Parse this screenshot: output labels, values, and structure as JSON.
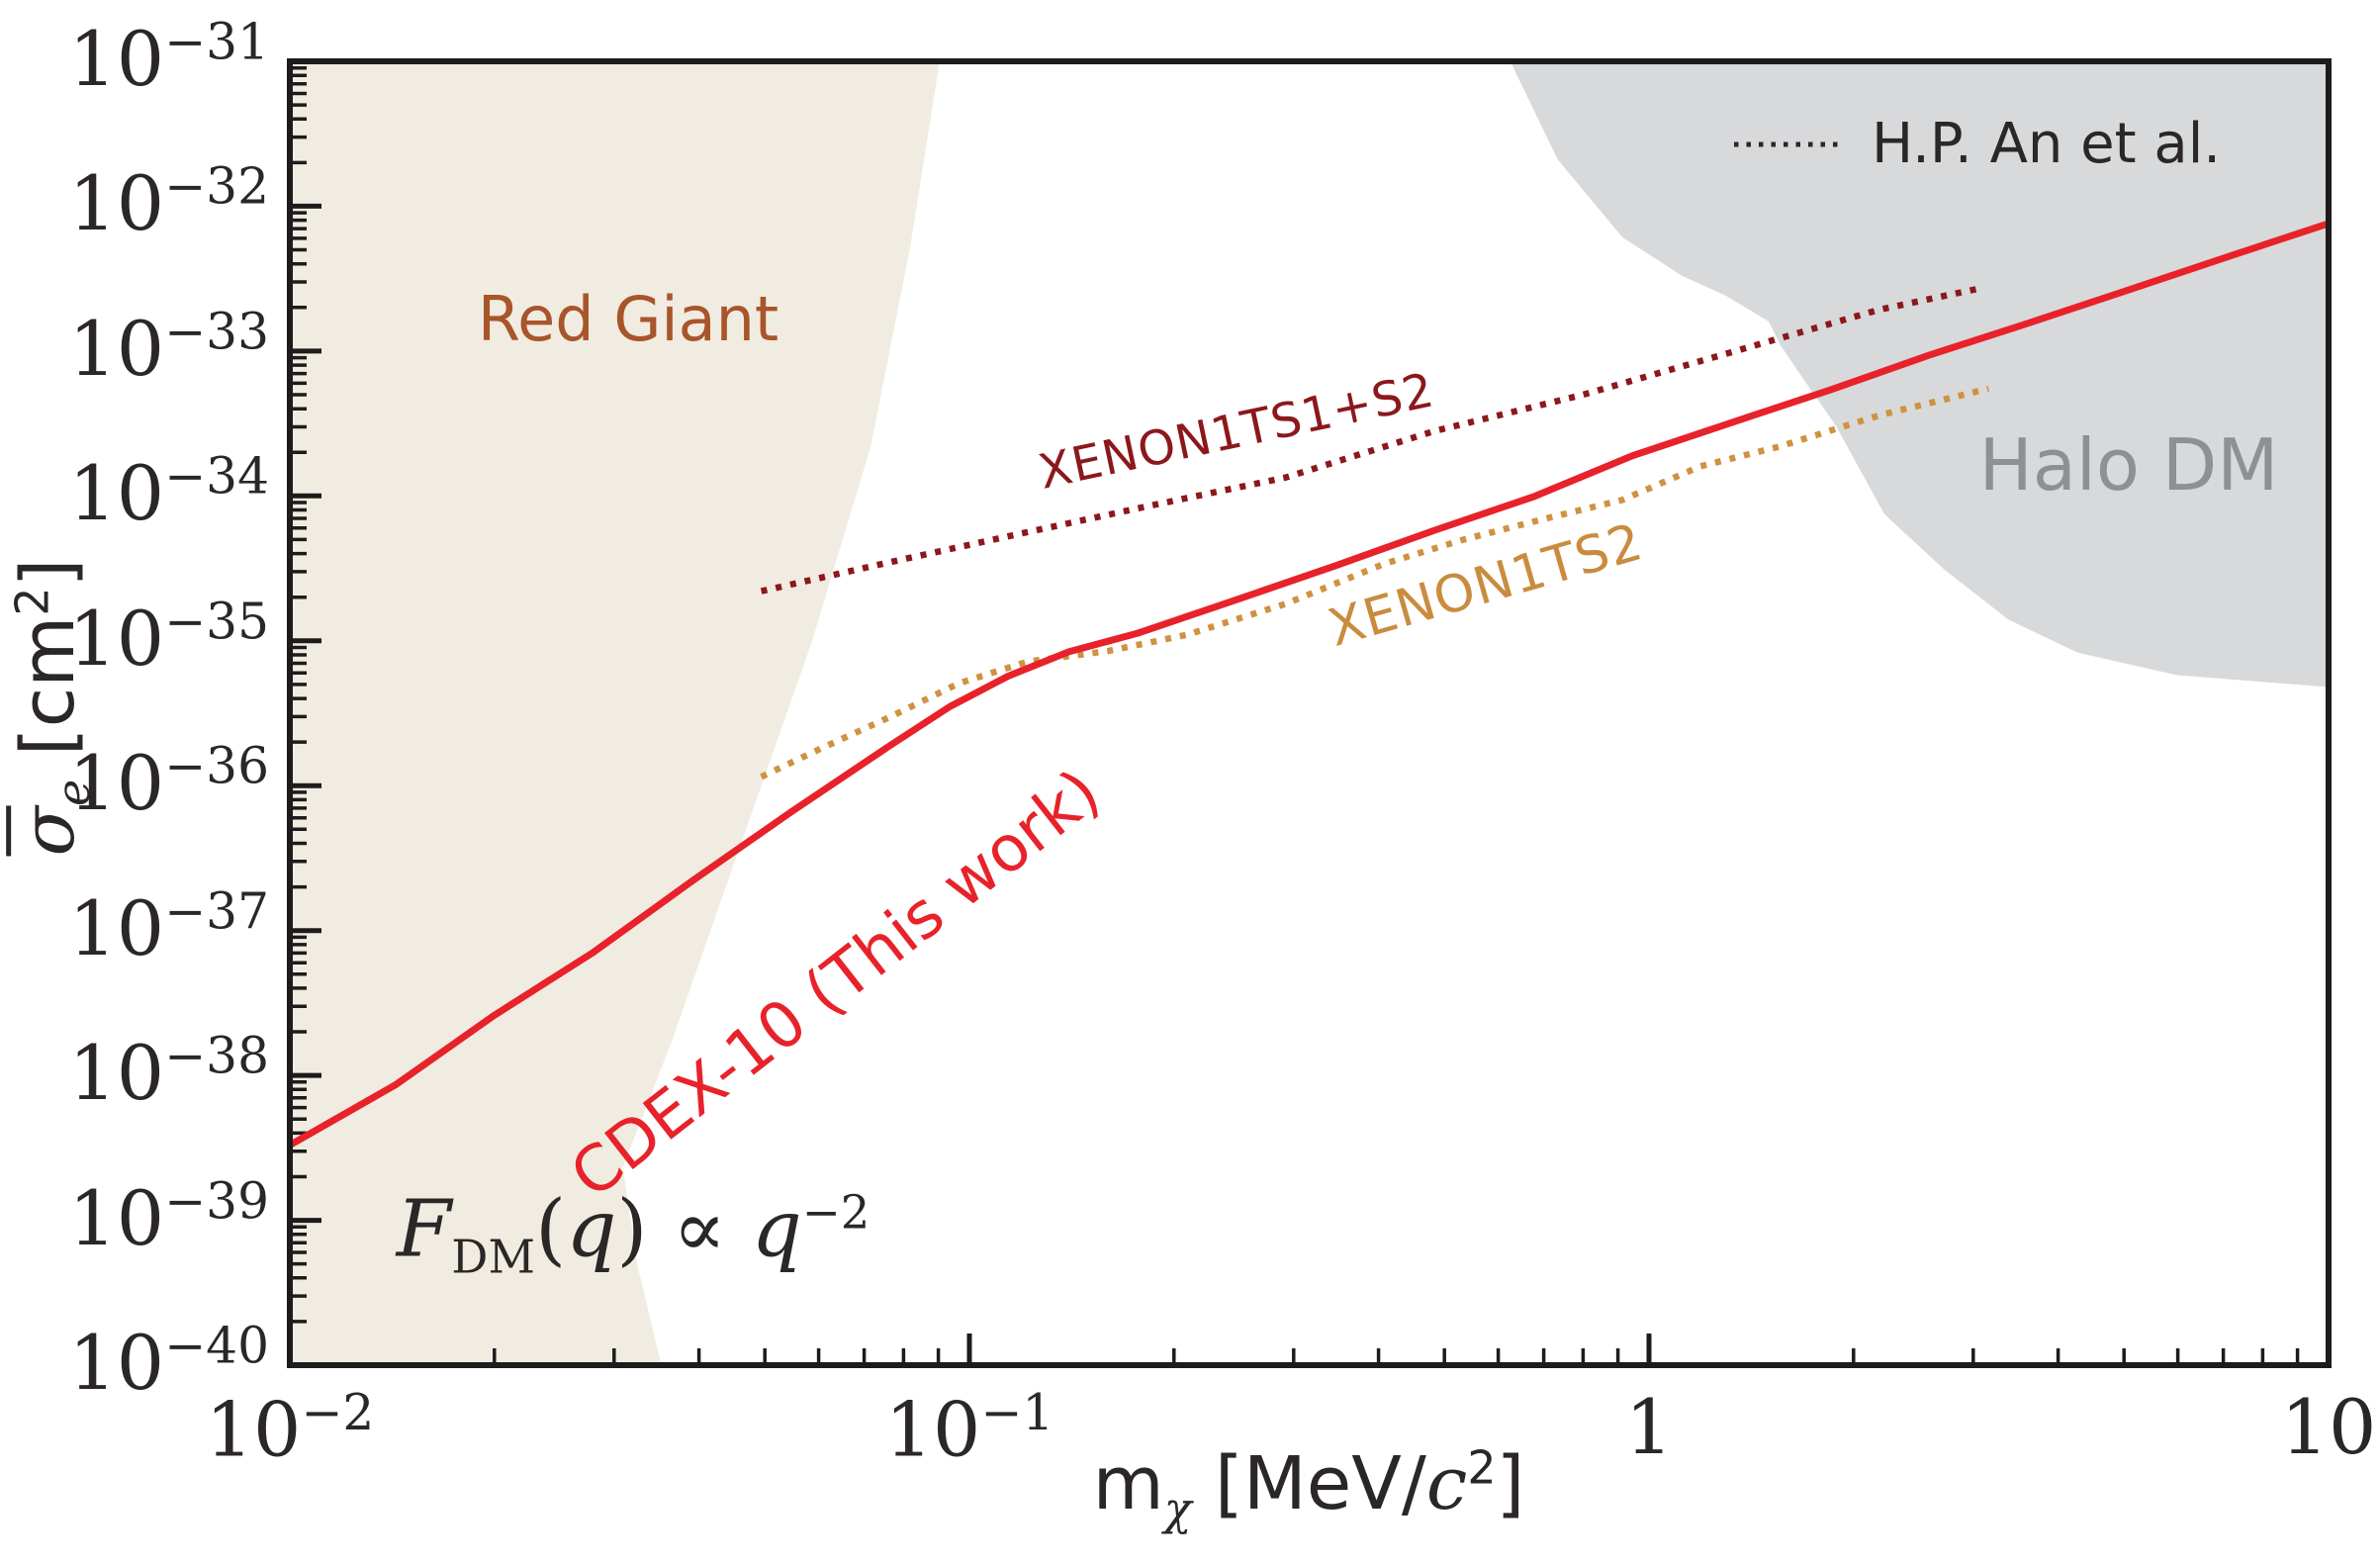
{
  "axes": {
    "border_color": "#1e1b1c",
    "x_label_parts": {
      "m": "m",
      "sub": "χ",
      "p1": " [MeV/",
      "c": "c",
      "sup": "2",
      "p2": "]"
    },
    "y_label_parts": {
      "s": "σ",
      "sub": "e",
      "p1": " [cm",
      "sup": "2",
      "p2": "]"
    }
  },
  "legend": {
    "label": "H.P. An et al.",
    "line_color": "#2b2727",
    "line_style": "dotted"
  },
  "annotations": {
    "red_giant": {
      "text": "Red Giant",
      "color": "#a8552b"
    },
    "halo_dm": {
      "text": "Halo DM",
      "color": "#8d9192"
    },
    "cdex": {
      "text": "CDEX-10 (This work)",
      "color": "#e8222a"
    },
    "xenon_s1s2": {
      "text": "XENON1TS1+S2",
      "color": "#8b181b"
    },
    "xenon_s2": {
      "text": "XENON1TS2",
      "color": "#c98c3e"
    },
    "form_factor": {
      "F": "F",
      "sub": "DM",
      "p1": "(",
      "q1": "q",
      "p2": ") ∝ ",
      "q2": "q",
      "sup": "−2",
      "color": "#2b2727"
    }
  },
  "chart_data": {
    "type": "line",
    "title": "",
    "xlabel": "mχ [MeV/c²]",
    "ylabel": "σ̄e [cm²]",
    "x_scale": "log",
    "y_scale": "log",
    "grid": false,
    "x_range": [
      0.01,
      10
    ],
    "y_range": [
      1e-40,
      1e-31
    ],
    "legend_position": "upper right",
    "x_ticks": [
      {
        "value": 0.01,
        "base": "10",
        "exp": "−2"
      },
      {
        "value": 0.1,
        "base": "10",
        "exp": "−1"
      },
      {
        "value": 1,
        "base": "1",
        "exp": ""
      },
      {
        "value": 10,
        "base": "10",
        "exp": ""
      }
    ],
    "y_tick_exponents": [
      -31,
      -32,
      -33,
      -34,
      -35,
      -36,
      -37,
      -38,
      -39,
      -40
    ],
    "series": [
      {
        "id": "xenon1t-s1s2",
        "name": "XENON1TS1+S2",
        "color": "#8b181b",
        "style": "dotted",
        "points": [
          [
            0.0494,
            2.2e-35
          ],
          [
            0.0766,
            3.5e-35
          ],
          [
            0.119,
            5.5e-35
          ],
          [
            0.183,
            8.5e-35
          ],
          [
            0.292,
            1.34e-34
          ],
          [
            0.483,
            2.8e-34
          ],
          [
            0.8,
            5e-34
          ],
          [
            1.32,
            9.8e-34
          ],
          [
            2.18,
            1.93e-33
          ],
          [
            3.06,
            2.7e-33
          ]
        ]
      },
      {
        "id": "xenon1t-s2",
        "name": "XENON1TS2",
        "color": "#cf9242",
        "style": "dotted",
        "points": [
          [
            0.0494,
            1.15e-36
          ],
          [
            0.0604,
            1.8e-36
          ],
          [
            0.0766,
            3e-36
          ],
          [
            0.0966,
            5.1e-36
          ],
          [
            0.122,
            7.2e-36
          ],
          [
            0.16,
            8.5e-36
          ],
          [
            0.209,
            1.1e-35
          ],
          [
            0.292,
            1.8e-35
          ],
          [
            0.408,
            3.4e-35
          ],
          [
            0.534,
            5e-35
          ],
          [
            0.698,
            6.9e-35
          ],
          [
            0.914,
            9.4e-35
          ],
          [
            1.19,
            1.6e-34
          ],
          [
            1.56,
            2.2e-34
          ],
          [
            2.18,
            3.6e-34
          ],
          [
            3.16,
            5.5e-34
          ]
        ]
      },
      {
        "id": "cdex10",
        "name": "CDEX-10 (This work)",
        "color": "#e8222a",
        "style": "solid",
        "points": [
          [
            0.01,
            3.3e-39
          ],
          [
            0.0143,
            8.6e-39
          ],
          [
            0.02,
            2.6e-38
          ],
          [
            0.028,
            7.1e-38
          ],
          [
            0.0391,
            2.2e-37
          ],
          [
            0.0547,
            6.6e-37
          ],
          [
            0.0765,
            1.9e-36
          ],
          [
            0.0935,
            3.5e-36
          ],
          [
            0.114,
            5.7e-36
          ],
          [
            0.14,
            8.4e-36
          ],
          [
            0.177,
            1.13e-35
          ],
          [
            0.247,
            1.92e-35
          ],
          [
            0.346,
            3.3e-35
          ],
          [
            0.484,
            5.8e-35
          ],
          [
            0.677,
            9.9e-35
          ],
          [
            0.947,
            1.9e-34
          ],
          [
            1.32,
            3.2e-34
          ],
          [
            1.85,
            5.4e-34
          ],
          [
            2.59,
            9.4e-34
          ],
          [
            3.62,
            1.56e-33
          ],
          [
            5.06,
            2.63e-33
          ],
          [
            7.08,
            4.45e-33
          ],
          [
            10,
            7.6e-33
          ]
        ]
      }
    ],
    "regions": [
      {
        "id": "red-giant",
        "name": "Red Giant",
        "color": "#f1ece1",
        "points": [
          [
            0.01,
            1e-31
          ],
          [
            0.0904,
            1e-31
          ],
          [
            0.0818,
            5.2e-33
          ],
          [
            0.0716,
            2.2e-34
          ],
          [
            0.0585,
            9.5e-36
          ],
          [
            0.0463,
            4.2e-37
          ],
          [
            0.0366,
            1.8e-38
          ],
          [
            0.0309,
            2.3e-39
          ],
          [
            0.0325,
            4.8e-40
          ],
          [
            0.0352,
            1e-40
          ],
          [
            0.01,
            1e-40
          ]
        ]
      },
      {
        "id": "halo-dm",
        "name": "Halo DM",
        "color": "#d8d9db",
        "points": [
          [
            0.625,
            1e-31
          ],
          [
            10,
            1e-31
          ],
          [
            10,
            4.8e-36
          ],
          [
            5.97,
            5.8e-36
          ],
          [
            4.27,
            8.3e-36
          ],
          [
            3.38,
            1.4e-35
          ],
          [
            2.72,
            3.1e-35
          ],
          [
            2.22,
            7.5e-35
          ],
          [
            1.88,
            3.1e-34
          ],
          [
            1.7,
            6.1e-34
          ],
          [
            1.56,
            1.1e-33
          ],
          [
            1.5,
            1.6e-33
          ],
          [
            1.3,
            2.4e-33
          ],
          [
            1.12,
            3.3e-33
          ],
          [
            0.914,
            6.1e-33
          ],
          [
            0.734,
            2.1e-32
          ]
        ]
      }
    ]
  }
}
